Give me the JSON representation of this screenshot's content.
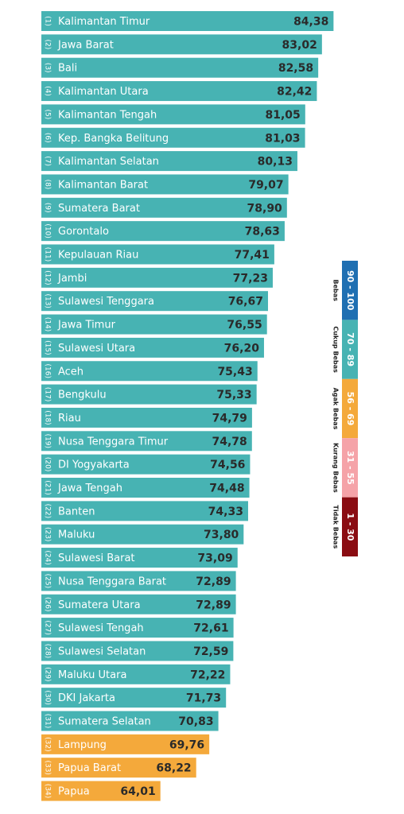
{
  "chart_data": {
    "type": "bar",
    "orientation": "horizontal",
    "categories": [
      "Kalimantan Timur",
      "Jawa Barat",
      "Bali",
      "Kalimantan Utara",
      "Kalimantan Tengah",
      "Kep. Bangka Belitung",
      "Kalimantan Selatan",
      "Kalimantan Barat",
      "Sumatera Barat",
      "Gorontalo",
      "Kepulauan Riau",
      "Jambi",
      "Sulawesi Tenggara",
      "Jawa Timur",
      "Sulawesi Utara",
      "Aceh",
      "Bengkulu",
      "Riau",
      "Nusa Tenggara Timur",
      "DI Yogyakarta",
      "Jawa Tengah",
      "Banten",
      "Maluku",
      "Sulawesi Barat",
      "Nusa Tenggara Barat",
      "Sumatera Utara",
      "Sulawesi Tengah",
      "Sulawesi Selatan",
      "Maluku Utara",
      "DKI Jakarta",
      "Sumatera Selatan",
      "Lampung",
      "Papua Barat",
      "Papua"
    ],
    "ranks": [
      "(1)",
      "(2)",
      "(3)",
      "(4)",
      "(5)",
      "(6)",
      "(7)",
      "(8)",
      "(9)",
      "(10)",
      "(11)",
      "(12)",
      "(13)",
      "(14)",
      "(15)",
      "(16)",
      "(17)",
      "(18)",
      "(19)",
      "(20)",
      "(21)",
      "(22)",
      "(23)",
      "(24)",
      "(25)",
      "(26)",
      "(27)",
      "(28)",
      "(29)",
      "(30)",
      "(31)",
      "(32)",
      "(33)",
      "(34)"
    ],
    "values": [
      84.38,
      83.02,
      82.58,
      82.42,
      81.05,
      81.03,
      80.13,
      79.07,
      78.9,
      78.63,
      77.41,
      77.23,
      76.67,
      76.55,
      76.2,
      75.43,
      75.33,
      74.79,
      74.78,
      74.56,
      74.48,
      74.33,
      73.8,
      73.09,
      72.89,
      72.89,
      72.61,
      72.59,
      72.22,
      71.73,
      70.83,
      69.76,
      68.22,
      64.01
    ],
    "value_labels": [
      "84,38",
      "83,02",
      "82,58",
      "82,42",
      "81,05",
      "81,03",
      "80,13",
      "79,07",
      "78,90",
      "78,63",
      "77,41",
      "77,23",
      "76,67",
      "76,55",
      "76,20",
      "75,43",
      "75,33",
      "74,79",
      "74,78",
      "74,56",
      "74,48",
      "74,33",
      "73,80",
      "73,09",
      "72,89",
      "72,89",
      "72,61",
      "72,59",
      "72,22",
      "71,73",
      "70,83",
      "69,76",
      "68,22",
      "64,01"
    ],
    "colors": [
      "#47b3b3",
      "#47b3b3",
      "#47b3b3",
      "#47b3b3",
      "#47b3b3",
      "#47b3b3",
      "#47b3b3",
      "#47b3b3",
      "#47b3b3",
      "#47b3b3",
      "#47b3b3",
      "#47b3b3",
      "#47b3b3",
      "#47b3b3",
      "#47b3b3",
      "#47b3b3",
      "#47b3b3",
      "#47b3b3",
      "#47b3b3",
      "#47b3b3",
      "#47b3b3",
      "#47b3b3",
      "#47b3b3",
      "#47b3b3",
      "#47b3b3",
      "#47b3b3",
      "#47b3b3",
      "#47b3b3",
      "#47b3b3",
      "#47b3b3",
      "#47b3b3",
      "#f4a93b",
      "#f4a93b",
      "#f4a93b"
    ],
    "xlim": [
      50,
      85
    ],
    "legend": [
      {
        "range": "90 - 100",
        "label": "Bebas",
        "color": "#1f6fb2"
      },
      {
        "range": "70 - 89",
        "label": "Cukup Bebas",
        "color": "#47b3b3"
      },
      {
        "range": "56 - 69",
        "label": "Agak Bebas",
        "color": "#f4a93b"
      },
      {
        "range": "31 - 55",
        "label": "Kurang Bebas",
        "color": "#f5a3a8"
      },
      {
        "range": "1 - 30",
        "label": "Tidak Bebas",
        "color": "#8a0c12"
      }
    ]
  }
}
